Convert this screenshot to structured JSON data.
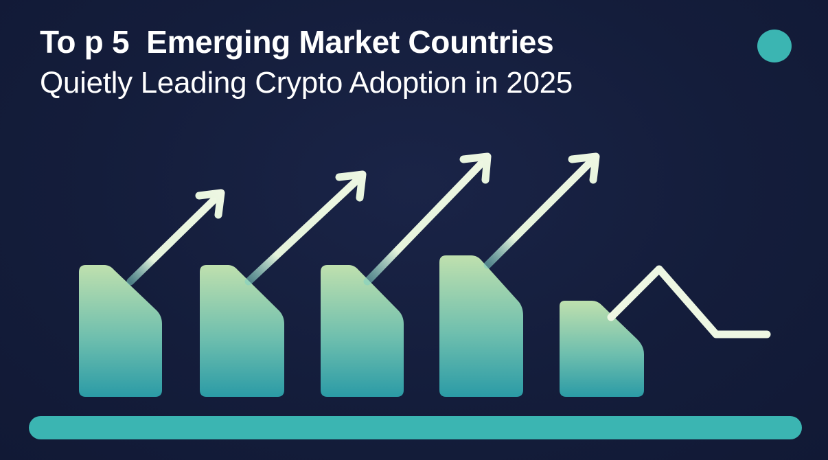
{
  "title": {
    "line1": "To p 5  Emerging Market Countries",
    "line2": "Quietly Leading Crypto Adoption in 2025"
  },
  "colors": {
    "background": "#141d3b",
    "teal": "#3bb5b2",
    "bar_top": "#bfe0ae",
    "bar_bottom": "#2b9ba6",
    "arrow": "#eef7e3"
  },
  "bars": [
    {
      "name": "bar-1",
      "relative_height": 0.98
    },
    {
      "name": "bar-2",
      "relative_height": 0.98
    },
    {
      "name": "bar-3",
      "relative_height": 0.98
    },
    {
      "name": "bar-4",
      "relative_height": 1.0
    },
    {
      "name": "bar-5",
      "relative_height": 0.68
    }
  ],
  "icons": {
    "dot": "circle-dot-icon",
    "arrows": "trend-up-arrow-icon",
    "line": "trend-zigzag-line-icon"
  }
}
